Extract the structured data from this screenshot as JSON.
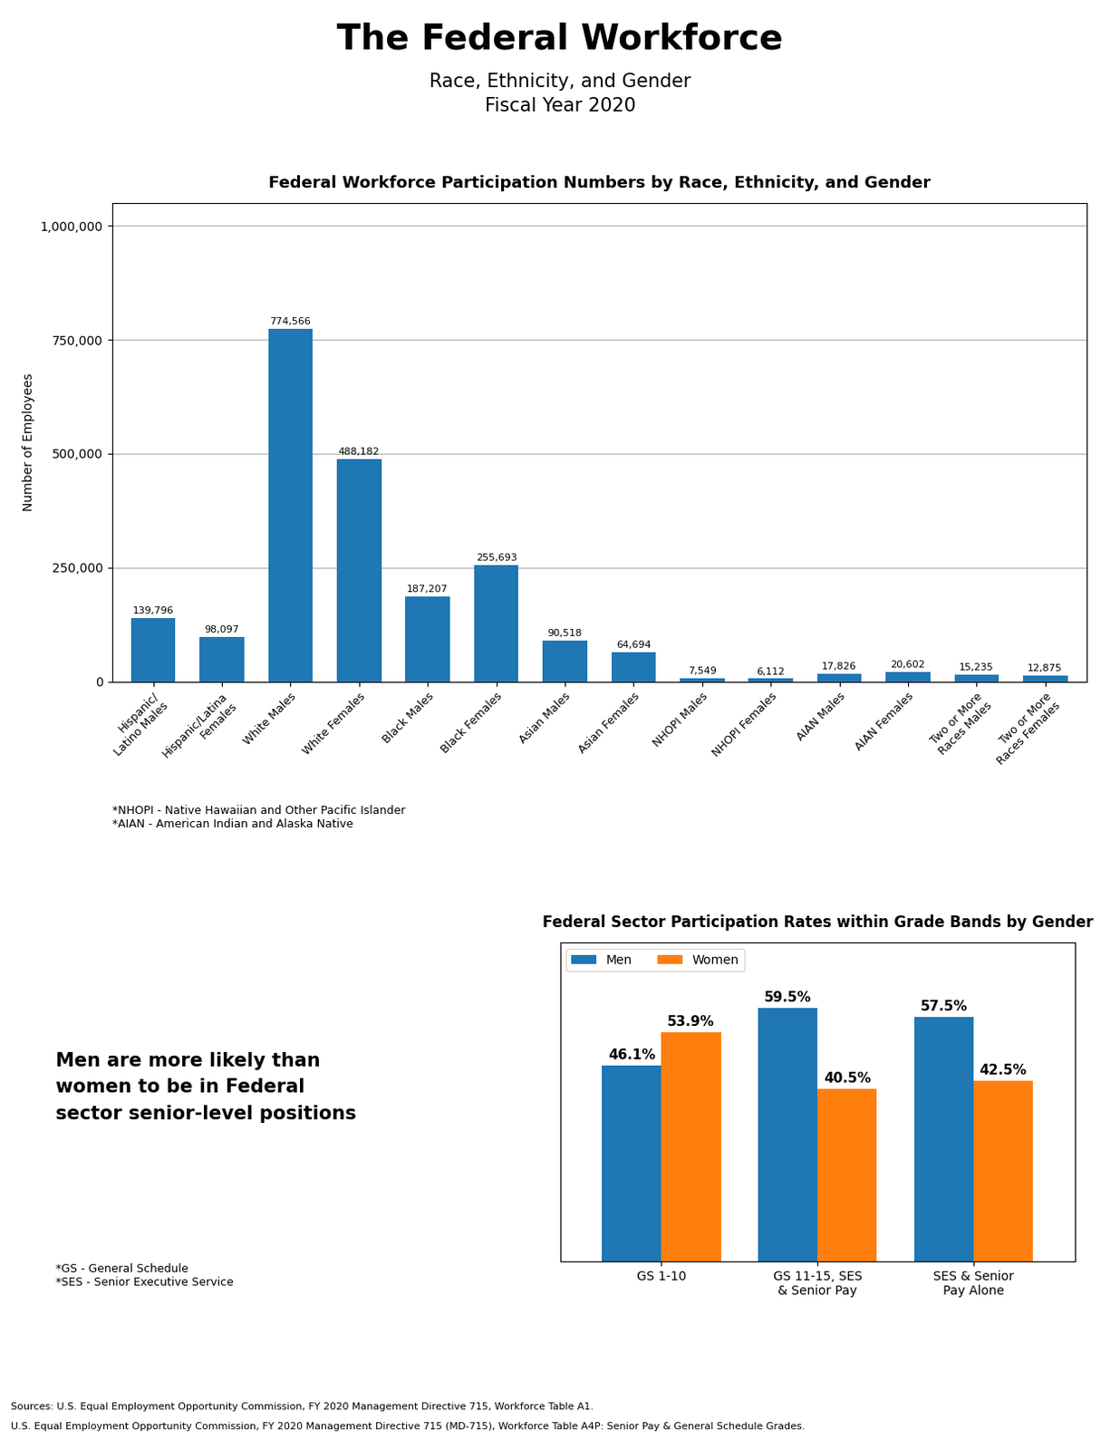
{
  "title": "The Federal Workforce",
  "subtitle": [
    "Race, Ethnicity, and Gender",
    "Fiscal Year 2020"
  ],
  "annotations": [
    "Sources: U.S. Equal Employment Opportunity Commission, FY 2020 Management Directive 715, Workforce Table A1.",
    "U.S. Equal Employment Opportunity Commission, FY 2020 Management Directive 715 (MD-715), Workforce Table A4P: Senior Pay & General Schedule Grades."
  ],
  "chart_data": [
    {
      "type": "bar",
      "title": "Federal Workforce Participation Numbers by Race, Ethnicity, and Gender",
      "y_label": "Number of Employees",
      "categories": [
        "Hispanic/\nLatino Males",
        "Hispanic/Latina\nFemales",
        "White Males",
        "White Females",
        "Black Males",
        "Black Females",
        "Asian Males",
        "Asian Females",
        "NHOPI Males",
        "NHOPI Females",
        "AIAN Males",
        "AIAN Females",
        "Two or More\nRaces Males",
        "Two or More\nRaces Females"
      ],
      "values": [
        139796,
        98097,
        774566,
        488182,
        187207,
        255693,
        90518,
        64694,
        7549,
        6112,
        17826,
        20602,
        15235,
        12875
      ],
      "value_labels": [
        "139,796",
        "98,097",
        "774,566",
        "488,182",
        "187,207",
        "255,693",
        "90,518",
        "64,694",
        "7,549",
        "6,112",
        "17,826",
        "20,602",
        "15,235",
        "12,875"
      ],
      "ylim": [
        0,
        1050000
      ],
      "yticks": [
        0,
        {
          "value": 250000,
          "label": "250,000"
        },
        {
          "value": 500000,
          "label": "500,000"
        },
        {
          "value": 750000,
          "label": "750,000"
        },
        {
          "value": 1000000,
          "label": "1,000,000"
        }
      ],
      "grid": true,
      "data_labels": true,
      "annotations": [
        "*NHOPI - Native Hawaiian and Other Pacific Islander\n*AIAN - American Indian and Alaska Native"
      ]
    },
    {
      "type": "bar",
      "title": "Federal Sector Participation Rates within Grade Bands by Gender",
      "categories": [
        "GS 1-10",
        "GS 11-15, SES\n& Senior Pay",
        "SES & Senior\nPay Alone"
      ],
      "series": [
        {
          "name": "Men",
          "values": [
            46.1,
            59.5,
            57.5
          ],
          "value_labels": [
            "46.1%",
            "59.5%",
            "57.5%"
          ]
        },
        {
          "name": "Women",
          "values": [
            53.9,
            40.5,
            42.5
          ],
          "value_labels": [
            "53.9%",
            "40.5%",
            "42.5%"
          ]
        }
      ],
      "ylim": [
        0,
        75
      ],
      "yticks": [],
      "tick_labels": "x",
      "grid": false,
      "data_labels": true,
      "legend": "upper left",
      "annotations": [
        "Men are more likely than\nwomen to be in Federal\nsector senior-level positions",
        "*GS - General Schedule\n*SES - Senior Executive Service"
      ]
    }
  ]
}
